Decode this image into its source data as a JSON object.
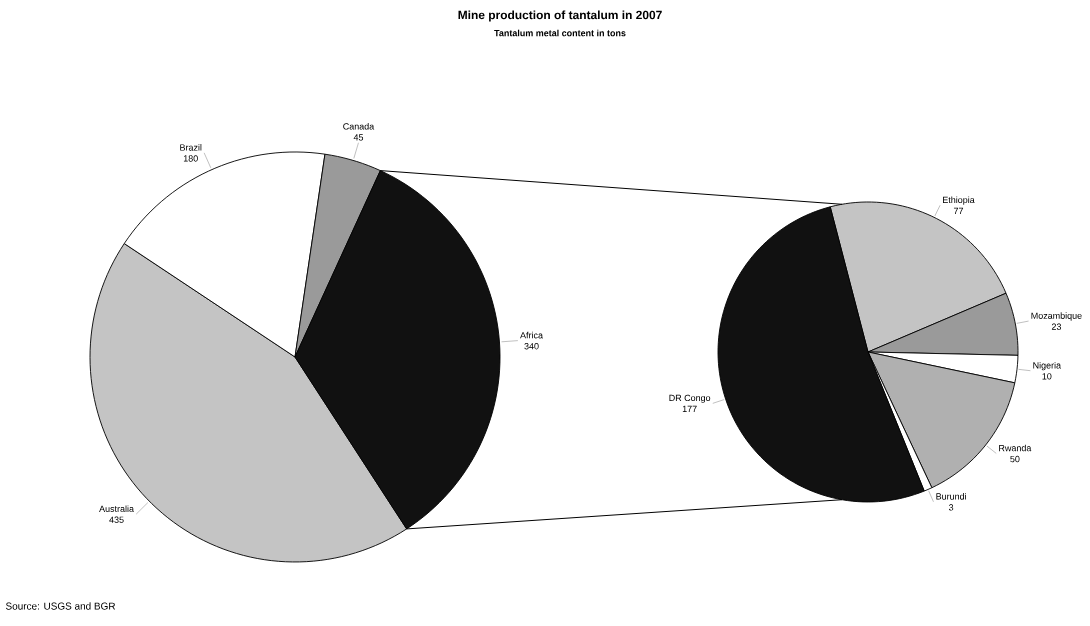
{
  "chart_data": [
    {
      "type": "pie",
      "title": "Mine production of tantalum in 2007",
      "subtitle": "Tantalum metal content in tons",
      "categories": [
        "Australia",
        "Brazil",
        "Canada",
        "Africa"
      ],
      "values": [
        435,
        180,
        45,
        340
      ],
      "colors": [
        "#c4c4c4",
        "#ffffff",
        "#9a9a9a",
        "#111111"
      ],
      "data_labels": true,
      "annotations": [
        "Source: USGS and BGR"
      ]
    },
    {
      "type": "pie",
      "categories": [
        "Ethiopia",
        "Mozambique",
        "Nigeria",
        "Rwanda",
        "Burundi",
        "DR Congo"
      ],
      "values": [
        77,
        23,
        10,
        50,
        3,
        177
      ],
      "colors": [
        "#c4c4c4",
        "#9a9a9a",
        "#ffffff",
        "#b0b0b0",
        "#ffffff",
        "#111111"
      ],
      "data_labels": true
    }
  ]
}
